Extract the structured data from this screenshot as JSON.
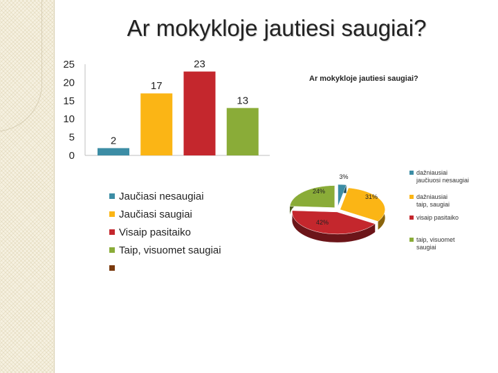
{
  "slide": {
    "title": "Ar mokykloje jautiesi saugiai?"
  },
  "chart_data": [
    {
      "type": "bar",
      "categories": [
        "Jaučiasi nesaugiai",
        "Jaučiasi saugiai",
        "Visaip pasitaiko",
        "Taip, visuomet saugiai"
      ],
      "values": [
        2,
        17,
        23,
        13
      ],
      "colors": [
        "#3c8da5",
        "#fbb515",
        "#c4272d",
        "#8aac38"
      ],
      "yticks": [
        "0",
        "5",
        "10",
        "15",
        "20",
        "25"
      ],
      "ylim": [
        0,
        25
      ],
      "data_labels": [
        "2",
        "17",
        "23",
        "13"
      ],
      "legend": [
        "Jaučiasi nesaugiai",
        "Jaučiasi saugiai",
        "Visaip pasitaiko",
        "Taip, visuomet saugiai",
        ""
      ],
      "legend_colors": [
        "#3c8da5",
        "#fbb515",
        "#c4272d",
        "#8aac38",
        "#7a3a0e"
      ],
      "legend_position": "bottom"
    },
    {
      "type": "pie",
      "title": "Ar mokykloje jautiesi saugiai?",
      "values": [
        3,
        31,
        42,
        24
      ],
      "labels": [
        "3%",
        "31%",
        "42%",
        "24%"
      ],
      "legend": [
        "dažniausiai jaučiuosi nesaugiai",
        "dažniausiai taip, saugiai",
        "visaip pasitaiko",
        "taip, visuomet saugiai"
      ],
      "colors": [
        "#3c8da5",
        "#fbb515",
        "#c4272d",
        "#8aac38"
      ],
      "style": "3d-exploded",
      "legend_position": "right"
    }
  ]
}
